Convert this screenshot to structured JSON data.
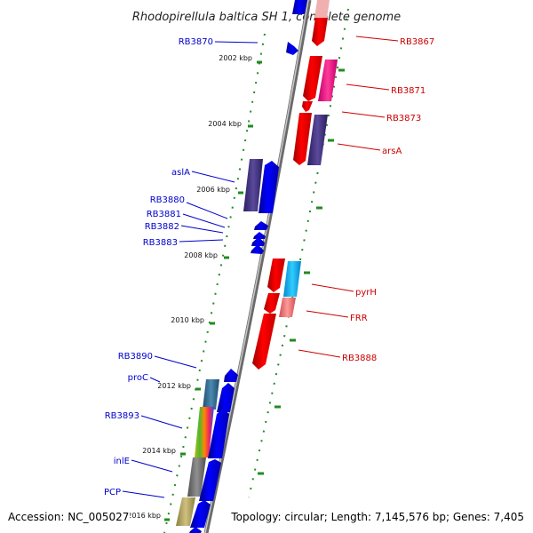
{
  "header": {
    "title": "Rhodopirellula baltica SH 1, complete genome"
  },
  "footer": {
    "accession": "Accession: NC_005027",
    "topology": "Topology: circular; Length: 7,145,576 bp; Genes: 7,405"
  },
  "axis": {
    "ticks": [
      "2002 kbp",
      "2004 kbp",
      "2006 kbp",
      "2008 kbp",
      "2010 kbp",
      "2012 kbp",
      "2014 kbp",
      "2016 kbp"
    ]
  },
  "labels_left": [
    "RB3870",
    "aslA",
    "RB3880",
    "RB3881",
    "RB3882",
    "RB3883",
    "RB3890",
    "proC",
    "RB3893",
    "inlE",
    "PCP"
  ],
  "labels_right": [
    "RB3867",
    "RB3871",
    "RB3873",
    "arsA",
    "pyrH",
    "FRR",
    "RB3888"
  ],
  "colors": {
    "backbone": "#808080",
    "left_label": "#0000cc",
    "right_label": "#cc0000",
    "dots": "#228b22",
    "forward_gene": "#0000ee",
    "reverse_gene": "#ee0000"
  }
}
